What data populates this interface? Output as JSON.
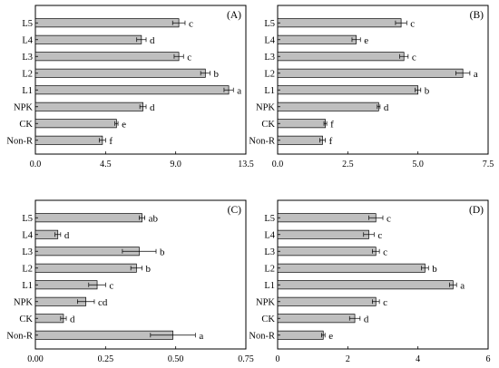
{
  "chart_data": [
    {
      "type": "bar",
      "orientation": "horizontal",
      "panel_label": "(A)",
      "categories": [
        "L5",
        "L4",
        "L3",
        "L2",
        "L1",
        "NPK",
        "CK",
        "Non-R"
      ],
      "values": [
        9.2,
        6.8,
        9.2,
        10.9,
        12.4,
        6.9,
        5.2,
        4.3
      ],
      "errors": [
        0.4,
        0.3,
        0.3,
        0.3,
        0.3,
        0.2,
        0.1,
        0.2
      ],
      "letters": [
        "c",
        "d",
        "c",
        "b",
        "a",
        "d",
        "e",
        "f"
      ],
      "xlim": [
        0,
        13.5
      ],
      "xticks": [
        "0.0",
        "4.5",
        "9.0",
        "13.5"
      ],
      "xtick_values": [
        0,
        4.5,
        9,
        13.5
      ]
    },
    {
      "type": "bar",
      "orientation": "horizontal",
      "panel_label": "(B)",
      "categories": [
        "L5",
        "L4",
        "L3",
        "L2",
        "L1",
        "NPK",
        "CK",
        "Non-R"
      ],
      "values": [
        4.4,
        2.8,
        4.5,
        6.6,
        5.0,
        3.6,
        1.7,
        1.6
      ],
      "errors": [
        0.2,
        0.15,
        0.15,
        0.25,
        0.1,
        0.05,
        0.05,
        0.1
      ],
      "letters": [
        "c",
        "e",
        "c",
        "a",
        "b",
        "d",
        "f",
        "f"
      ],
      "xlim": [
        0,
        7.5
      ],
      "xticks": [
        "0.0",
        "2.5",
        "5.0",
        "7.5"
      ],
      "xtick_values": [
        0,
        2.5,
        5,
        7.5
      ]
    },
    {
      "type": "bar",
      "orientation": "horizontal",
      "panel_label": "(C)",
      "categories": [
        "L5",
        "L4",
        "L3",
        "L2",
        "L1",
        "NPK",
        "CK",
        "Non-R"
      ],
      "values": [
        0.38,
        0.08,
        0.37,
        0.36,
        0.22,
        0.18,
        0.1,
        0.49
      ],
      "errors": [
        0.01,
        0.01,
        0.06,
        0.02,
        0.03,
        0.03,
        0.01,
        0.08
      ],
      "letters": [
        "ab",
        "d",
        "b",
        "b",
        "c",
        "cd",
        "d",
        "a"
      ],
      "xlim": [
        0,
        0.75
      ],
      "xticks": [
        "0.00",
        "0.25",
        "0.50",
        "0.75"
      ],
      "xtick_values": [
        0,
        0.25,
        0.5,
        0.75
      ]
    },
    {
      "type": "bar",
      "orientation": "horizontal",
      "panel_label": "(D)",
      "categories": [
        "L5",
        "L4",
        "L3",
        "L2",
        "L1",
        "NPK",
        "CK",
        "Non-R"
      ],
      "values": [
        2.8,
        2.6,
        2.8,
        4.2,
        5.0,
        2.8,
        2.2,
        1.3
      ],
      "errors": [
        0.2,
        0.15,
        0.1,
        0.1,
        0.1,
        0.1,
        0.15,
        0.05
      ],
      "letters": [
        "c",
        "c",
        "c",
        "b",
        "a",
        "c",
        "d",
        "e"
      ],
      "xlim": [
        0,
        6
      ],
      "xticks": [
        "0",
        "2",
        "4",
        "6"
      ],
      "xtick_values": [
        0,
        2,
        4,
        6
      ]
    }
  ]
}
